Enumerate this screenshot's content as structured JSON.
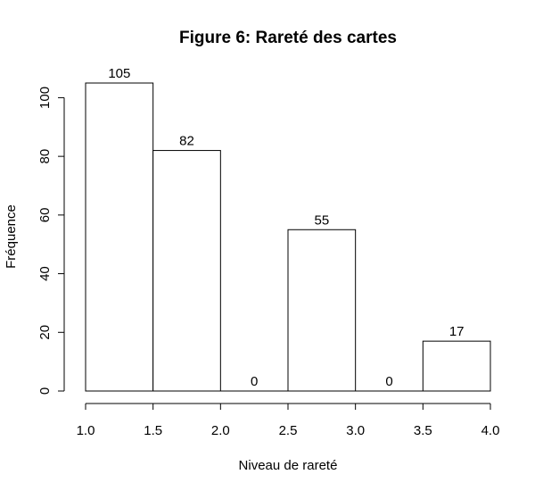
{
  "chart_data": {
    "type": "bar",
    "title": "Figure 6: Rareté des cartes",
    "xlabel": "Niveau de rareté",
    "ylabel": "Fréquence",
    "bins": [
      [
        1.0,
        1.5
      ],
      [
        1.5,
        2.0
      ],
      [
        2.0,
        2.5
      ],
      [
        2.5,
        3.0
      ],
      [
        3.0,
        3.5
      ],
      [
        3.5,
        4.0
      ]
    ],
    "values": [
      105,
      82,
      0,
      55,
      0,
      17
    ],
    "data_labels": [
      "105",
      "82",
      "0",
      "55",
      "0",
      "17"
    ],
    "xlim": [
      1.0,
      4.0
    ],
    "ylim": [
      0,
      105
    ],
    "x_ticks": [
      1.0,
      1.5,
      2.0,
      2.5,
      3.0,
      3.5,
      4.0
    ],
    "x_tick_labels": [
      "1.0",
      "1.5",
      "2.0",
      "2.5",
      "3.0",
      "3.5",
      "4.0"
    ],
    "y_ticks": [
      0,
      20,
      40,
      60,
      80,
      100
    ],
    "y_tick_labels": [
      "0",
      "20",
      "40",
      "60",
      "80",
      "100"
    ],
    "grid": false,
    "bar_fill": "#ffffff",
    "bar_stroke": "#000000"
  }
}
